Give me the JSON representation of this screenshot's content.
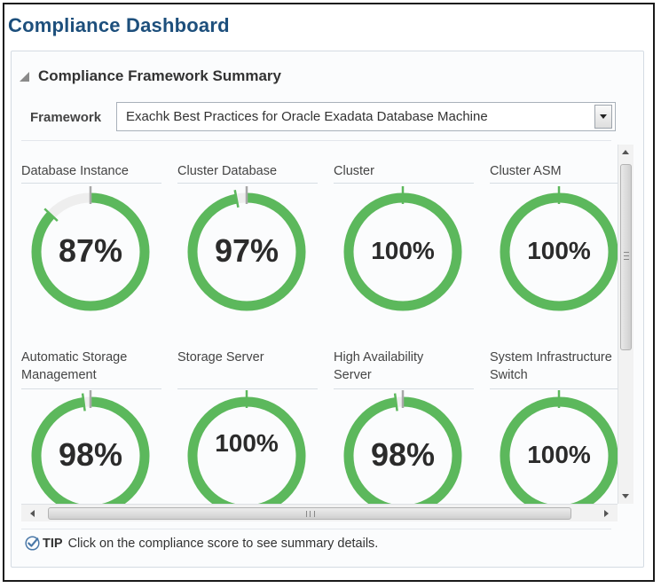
{
  "page": {
    "title": "Compliance Dashboard"
  },
  "summary": {
    "title": "Compliance Framework Summary",
    "framework_label": "Framework",
    "framework_value": "Exachk Best Practices for Oracle Exadata Database Machine"
  },
  "colors": {
    "title": "#1d4f7c",
    "ring_green": "#5cb85c",
    "ring_track": "#eeeeee"
  },
  "targets": [
    {
      "label": "Database Instance",
      "score": 87,
      "text": "87%"
    },
    {
      "label": "Cluster Database",
      "score": 97,
      "text": "97%"
    },
    {
      "label": "Cluster",
      "score": 100,
      "text": "100%"
    },
    {
      "label": "Cluster ASM",
      "score": 100,
      "text": "100%"
    },
    {
      "label": "Automatic Storage\nManagement",
      "score": 98,
      "text": "98%"
    },
    {
      "label": "Storage Server",
      "score": 100,
      "text": "100%"
    },
    {
      "label": "High Availability\nServer",
      "score": 98,
      "text": "98%"
    },
    {
      "label": "System Infrastructure\nSwitch",
      "score": 100,
      "text": "100%"
    }
  ],
  "scrollbar": {
    "grip_text": "III"
  },
  "tip": {
    "icon": "checkmark-icon",
    "label": "TIP",
    "text": "Click on the compliance score to see summary details."
  }
}
